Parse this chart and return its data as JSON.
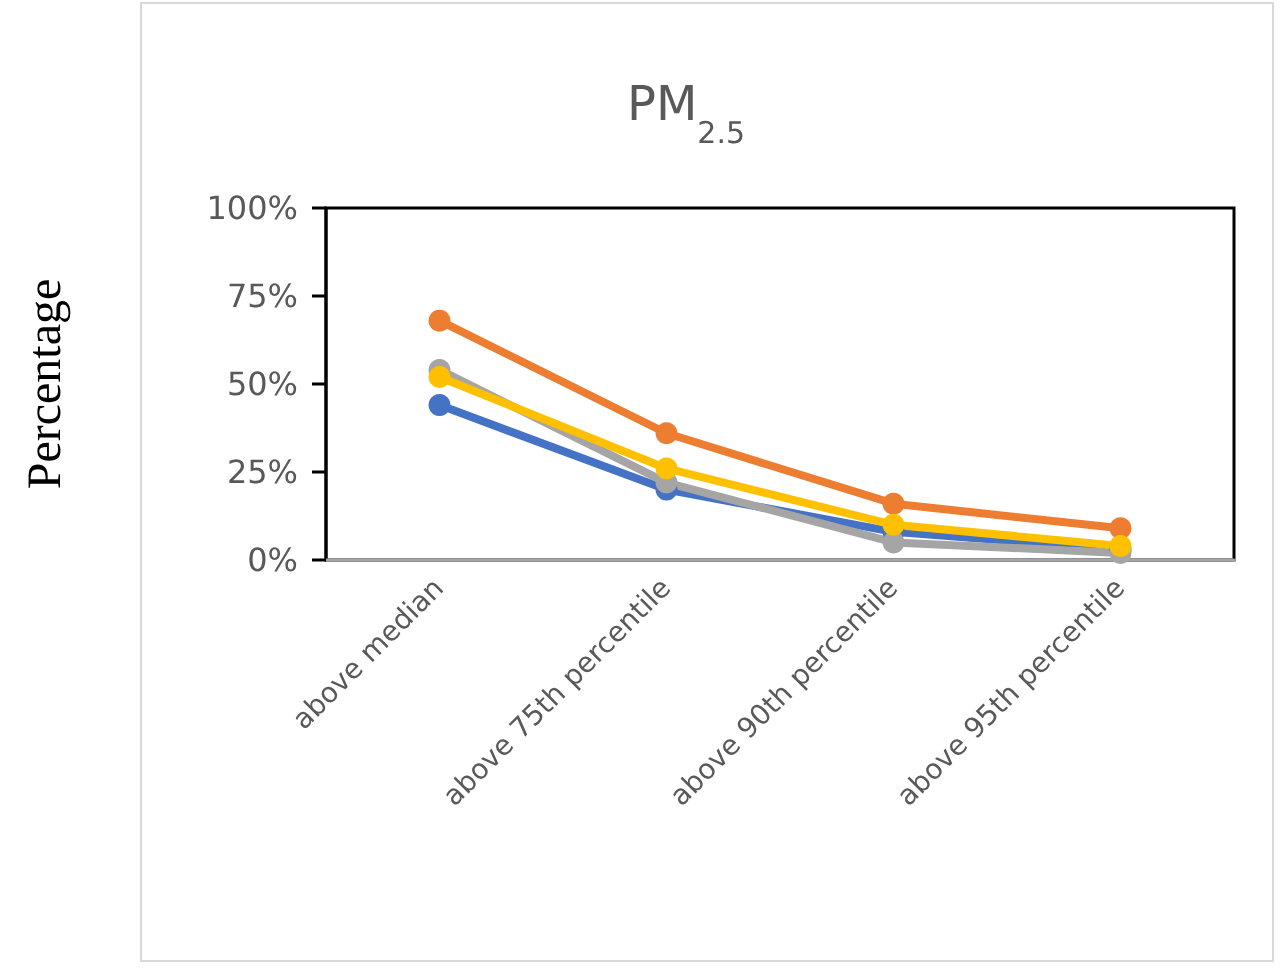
{
  "chart_data": {
    "type": "line",
    "title": "PM$_{2.5}$",
    "ylabel": "Percentage",
    "categories": [
      "above median",
      "above 75th percentile",
      "above 90th percentile",
      "above 95th percentile"
    ],
    "series": [
      {
        "color": "#4472c4",
        "values": [
          44,
          20,
          8,
          3
        ]
      },
      {
        "color": "#ed7d31",
        "values": [
          68,
          36,
          16,
          9
        ]
      },
      {
        "color": "#a5a5a5",
        "values": [
          54,
          22,
          5,
          2
        ]
      },
      {
        "color": "#ffc000",
        "values": [
          52,
          26,
          10,
          4
        ]
      }
    ],
    "ylim": [
      0,
      100
    ],
    "yticks": [
      {
        "value": 0,
        "label": "0%"
      },
      {
        "value": 25,
        "label": "25%"
      },
      {
        "value": 50,
        "label": "50%"
      },
      {
        "value": 75,
        "label": "75%"
      },
      {
        "value": 100,
        "label": "100%"
      }
    ],
    "marker": "circle"
  }
}
